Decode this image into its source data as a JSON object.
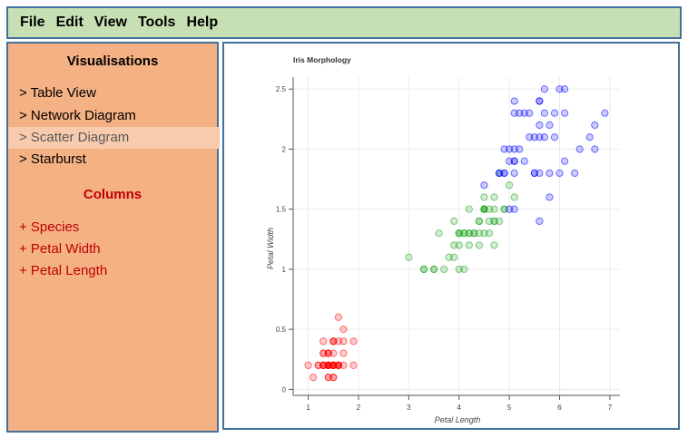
{
  "menu": {
    "items": [
      "File",
      "Edit",
      "View",
      "Tools",
      "Help"
    ]
  },
  "sidebar": {
    "visualisations_title": "Visualisations",
    "vis_items": [
      "> Table View",
      "> Network Diagram",
      "> Scatter Diagram",
      "> Starburst"
    ],
    "active_vis_index": 2,
    "columns_title": "Columns",
    "column_items": [
      "+ Species",
      "+ Petal Width",
      "+ Petal Length"
    ]
  },
  "colors": {
    "setosa": "#ff0000",
    "versicolor": "#1fa31f",
    "virginica": "#0000ff",
    "menubar_bg": "#c6e0b4",
    "sidebar_bg": "#f4b183",
    "border": "#41719c",
    "columns_text": "#c00000"
  },
  "chart_data": {
    "type": "scatter",
    "title": "Iris Morphology",
    "xlabel": "Petal Length",
    "ylabel": "Petal Width",
    "xlim": [
      0.7,
      7.2
    ],
    "ylim": [
      -0.05,
      2.6
    ],
    "xticks": [
      1,
      2,
      3,
      4,
      5,
      6,
      7
    ],
    "yticks": [
      0,
      0.5,
      1,
      1.5,
      2,
      2.5
    ],
    "ytick_labels": [
      "0",
      "0.5",
      "1",
      "1.5",
      "2",
      "2.5"
    ],
    "grid": true,
    "series": [
      {
        "color": "#ff0000",
        "points": [
          [
            1.4,
            0.2
          ],
          [
            1.4,
            0.2
          ],
          [
            1.3,
            0.2
          ],
          [
            1.5,
            0.2
          ],
          [
            1.4,
            0.2
          ],
          [
            1.7,
            0.4
          ],
          [
            1.4,
            0.3
          ],
          [
            1.5,
            0.2
          ],
          [
            1.4,
            0.2
          ],
          [
            1.5,
            0.1
          ],
          [
            1.5,
            0.2
          ],
          [
            1.6,
            0.2
          ],
          [
            1.4,
            0.1
          ],
          [
            1.1,
            0.1
          ],
          [
            1.2,
            0.2
          ],
          [
            1.5,
            0.4
          ],
          [
            1.3,
            0.4
          ],
          [
            1.4,
            0.3
          ],
          [
            1.7,
            0.3
          ],
          [
            1.5,
            0.3
          ],
          [
            1.7,
            0.2
          ],
          [
            1.5,
            0.4
          ],
          [
            1.0,
            0.2
          ],
          [
            1.7,
            0.5
          ],
          [
            1.9,
            0.2
          ],
          [
            1.6,
            0.2
          ],
          [
            1.6,
            0.4
          ],
          [
            1.5,
            0.2
          ],
          [
            1.4,
            0.2
          ],
          [
            1.6,
            0.2
          ],
          [
            1.6,
            0.2
          ],
          [
            1.5,
            0.4
          ],
          [
            1.5,
            0.1
          ],
          [
            1.4,
            0.2
          ],
          [
            1.5,
            0.2
          ],
          [
            1.2,
            0.2
          ],
          [
            1.3,
            0.2
          ],
          [
            1.4,
            0.1
          ],
          [
            1.3,
            0.2
          ],
          [
            1.5,
            0.2
          ],
          [
            1.3,
            0.3
          ],
          [
            1.3,
            0.3
          ],
          [
            1.3,
            0.2
          ],
          [
            1.6,
            0.6
          ],
          [
            1.9,
            0.4
          ],
          [
            1.4,
            0.3
          ],
          [
            1.6,
            0.2
          ],
          [
            1.4,
            0.2
          ],
          [
            1.5,
            0.2
          ],
          [
            1.4,
            0.2
          ]
        ]
      },
      {
        "color": "#1fa31f",
        "points": [
          [
            4.7,
            1.4
          ],
          [
            4.5,
            1.5
          ],
          [
            4.9,
            1.5
          ],
          [
            4.0,
            1.3
          ],
          [
            4.6,
            1.5
          ],
          [
            4.5,
            1.3
          ],
          [
            4.7,
            1.6
          ],
          [
            3.3,
            1.0
          ],
          [
            4.6,
            1.3
          ],
          [
            3.9,
            1.4
          ],
          [
            3.5,
            1.0
          ],
          [
            4.2,
            1.5
          ],
          [
            4.0,
            1.0
          ],
          [
            4.7,
            1.4
          ],
          [
            3.6,
            1.3
          ],
          [
            4.4,
            1.4
          ],
          [
            4.5,
            1.5
          ],
          [
            4.1,
            1.0
          ],
          [
            4.5,
            1.5
          ],
          [
            3.9,
            1.1
          ],
          [
            4.8,
            1.8
          ],
          [
            4.0,
            1.3
          ],
          [
            4.9,
            1.5
          ],
          [
            4.7,
            1.2
          ],
          [
            4.3,
            1.3
          ],
          [
            4.4,
            1.4
          ],
          [
            4.8,
            1.4
          ],
          [
            5.0,
            1.7
          ],
          [
            4.5,
            1.5
          ],
          [
            3.5,
            1.0
          ],
          [
            3.8,
            1.1
          ],
          [
            3.7,
            1.0
          ],
          [
            3.9,
            1.2
          ],
          [
            5.1,
            1.6
          ],
          [
            4.5,
            1.5
          ],
          [
            4.5,
            1.6
          ],
          [
            4.7,
            1.5
          ],
          [
            4.4,
            1.3
          ],
          [
            4.1,
            1.3
          ],
          [
            4.0,
            1.3
          ],
          [
            4.4,
            1.2
          ],
          [
            4.6,
            1.4
          ],
          [
            4.0,
            1.2
          ],
          [
            3.3,
            1.0
          ],
          [
            4.2,
            1.3
          ],
          [
            4.2,
            1.2
          ],
          [
            4.2,
            1.3
          ],
          [
            4.3,
            1.3
          ],
          [
            3.0,
            1.1
          ],
          [
            4.1,
            1.3
          ]
        ]
      },
      {
        "color": "#0000ff",
        "points": [
          [
            6.0,
            2.5
          ],
          [
            5.1,
            1.9
          ],
          [
            5.9,
            2.1
          ],
          [
            5.6,
            1.8
          ],
          [
            5.8,
            2.2
          ],
          [
            6.6,
            2.1
          ],
          [
            4.5,
            1.7
          ],
          [
            6.3,
            1.8
          ],
          [
            5.8,
            1.8
          ],
          [
            6.1,
            2.5
          ],
          [
            5.1,
            2.0
          ],
          [
            5.3,
            1.9
          ],
          [
            5.5,
            2.1
          ],
          [
            5.0,
            2.0
          ],
          [
            5.1,
            2.4
          ],
          [
            5.3,
            2.3
          ],
          [
            5.5,
            1.8
          ],
          [
            6.7,
            2.2
          ],
          [
            6.9,
            2.3
          ],
          [
            5.0,
            1.5
          ],
          [
            5.7,
            2.3
          ],
          [
            4.9,
            2.0
          ],
          [
            6.7,
            2.0
          ],
          [
            4.9,
            1.8
          ],
          [
            5.7,
            2.1
          ],
          [
            6.0,
            1.8
          ],
          [
            4.8,
            1.8
          ],
          [
            4.9,
            1.8
          ],
          [
            5.6,
            2.1
          ],
          [
            5.8,
            1.6
          ],
          [
            6.1,
            1.9
          ],
          [
            6.4,
            2.0
          ],
          [
            5.6,
            2.2
          ],
          [
            5.1,
            1.5
          ],
          [
            5.6,
            1.4
          ],
          [
            6.1,
            2.3
          ],
          [
            5.6,
            2.4
          ],
          [
            5.5,
            1.8
          ],
          [
            4.8,
            1.8
          ],
          [
            5.4,
            2.1
          ],
          [
            5.6,
            2.4
          ],
          [
            5.1,
            2.3
          ],
          [
            5.1,
            1.9
          ],
          [
            5.9,
            2.3
          ],
          [
            5.7,
            2.5
          ],
          [
            5.2,
            2.3
          ],
          [
            5.0,
            1.9
          ],
          [
            5.2,
            2.0
          ],
          [
            5.4,
            2.3
          ],
          [
            5.1,
            1.8
          ]
        ]
      }
    ]
  }
}
